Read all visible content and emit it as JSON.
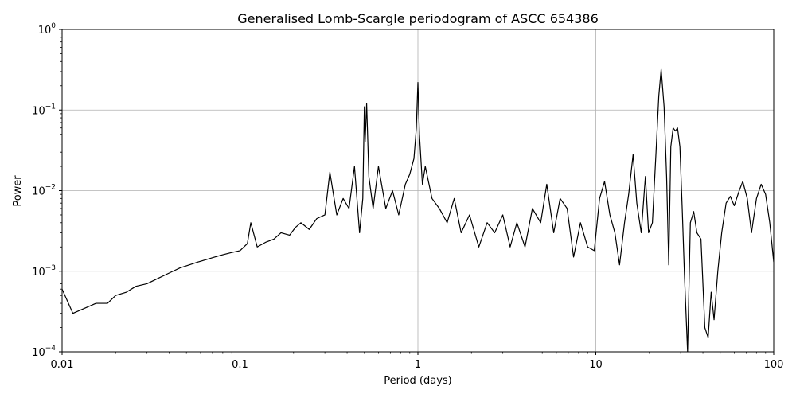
{
  "chart_data": {
    "type": "line",
    "title": "Generalised Lomb-Scargle periodogram of ASCC 654386",
    "xlabel": "Period (days)",
    "ylabel": "Power",
    "xscale": "log",
    "yscale": "log",
    "xlim": [
      0.01,
      100
    ],
    "ylim": [
      0.0001,
      1
    ],
    "grid": true,
    "line_color": "#000000",
    "grid_color": "#b0b0b0",
    "x_ticks": [
      {
        "value": 0.01,
        "label": "0.01"
      },
      {
        "value": 0.1,
        "label": "0.1"
      },
      {
        "value": 1,
        "label": "1"
      },
      {
        "value": 10,
        "label": "10"
      },
      {
        "value": 100,
        "label": "100"
      }
    ],
    "y_ticks": [
      {
        "value": 0.0001,
        "base": "10",
        "exp": "−4"
      },
      {
        "value": 0.001,
        "base": "10",
        "exp": "−3"
      },
      {
        "value": 0.01,
        "base": "10",
        "exp": "−2"
      },
      {
        "value": 0.1,
        "base": "10",
        "exp": "−1"
      },
      {
        "value": 1,
        "base": "10",
        "exp": "0"
      }
    ],
    "series": [
      {
        "x": [
          0.01,
          0.0115,
          0.0135,
          0.0155,
          0.018,
          0.02,
          0.023,
          0.026,
          0.03,
          0.034,
          0.038,
          0.042,
          0.046,
          0.052,
          0.058,
          0.065,
          0.072,
          0.08,
          0.089,
          0.1,
          0.11,
          0.115,
          0.125,
          0.14,
          0.155,
          0.17,
          0.19,
          0.205,
          0.22,
          0.245,
          0.27,
          0.3,
          0.32,
          0.335,
          0.35,
          0.38,
          0.41,
          0.44,
          0.47,
          0.49,
          0.5,
          0.505,
          0.515,
          0.53,
          0.56,
          0.6,
          0.66,
          0.72,
          0.78,
          0.85,
          0.9,
          0.95,
          0.98,
          1.0,
          1.02,
          1.06,
          1.1,
          1.2,
          1.32,
          1.46,
          1.6,
          1.75,
          1.95,
          2.2,
          2.45,
          2.7,
          3.0,
          3.3,
          3.6,
          4.0,
          4.4,
          4.9,
          5.3,
          5.8,
          6.3,
          6.9,
          7.5,
          8.2,
          9.0,
          9.8,
          10.5,
          11.2,
          12.0,
          12.8,
          13.6,
          14.5,
          15.3,
          16.2,
          17.0,
          18.0,
          19.0,
          19.8,
          20.8,
          21.8,
          22.6,
          23.3,
          24.2,
          25.0,
          25.7,
          26.4,
          27.2,
          28.0,
          28.8,
          29.7,
          30.6,
          31.5,
          32.8,
          34.0,
          35.5,
          37.0,
          39.0,
          41.0,
          42.8,
          44.5,
          46.2,
          48.5,
          51.0,
          54.0,
          57.0,
          60.0,
          64.0,
          67.0,
          71.0,
          75.0,
          80.0,
          85.0,
          90.0,
          95.0,
          100.0
        ],
        "y": [
          0.0006,
          0.0003,
          0.00035,
          0.0004,
          0.0004,
          0.0005,
          0.00055,
          0.00065,
          0.0007,
          0.0008,
          0.0009,
          0.001,
          0.0011,
          0.0012,
          0.0013,
          0.0014,
          0.0015,
          0.0016,
          0.0017,
          0.0018,
          0.0022,
          0.004,
          0.002,
          0.0023,
          0.0025,
          0.003,
          0.0028,
          0.0035,
          0.004,
          0.0033,
          0.0045,
          0.005,
          0.017,
          0.009,
          0.005,
          0.008,
          0.006,
          0.02,
          0.003,
          0.008,
          0.11,
          0.04,
          0.12,
          0.015,
          0.006,
          0.02,
          0.006,
          0.01,
          0.005,
          0.012,
          0.016,
          0.025,
          0.06,
          0.22,
          0.05,
          0.012,
          0.02,
          0.008,
          0.006,
          0.004,
          0.008,
          0.003,
          0.005,
          0.002,
          0.004,
          0.003,
          0.005,
          0.002,
          0.004,
          0.002,
          0.006,
          0.004,
          0.012,
          0.003,
          0.008,
          0.006,
          0.0015,
          0.004,
          0.002,
          0.0018,
          0.008,
          0.013,
          0.005,
          0.003,
          0.0012,
          0.004,
          0.009,
          0.028,
          0.007,
          0.003,
          0.015,
          0.003,
          0.004,
          0.03,
          0.15,
          0.32,
          0.11,
          0.015,
          0.0012,
          0.035,
          0.06,
          0.055,
          0.06,
          0.035,
          0.006,
          0.0009,
          0.0001,
          0.004,
          0.0055,
          0.003,
          0.0025,
          0.0002,
          0.00015,
          0.00055,
          0.00025,
          0.001,
          0.003,
          0.007,
          0.0085,
          0.0065,
          0.01,
          0.013,
          0.008,
          0.003,
          0.008,
          0.012,
          0.009,
          0.004,
          0.0013
        ]
      }
    ]
  }
}
